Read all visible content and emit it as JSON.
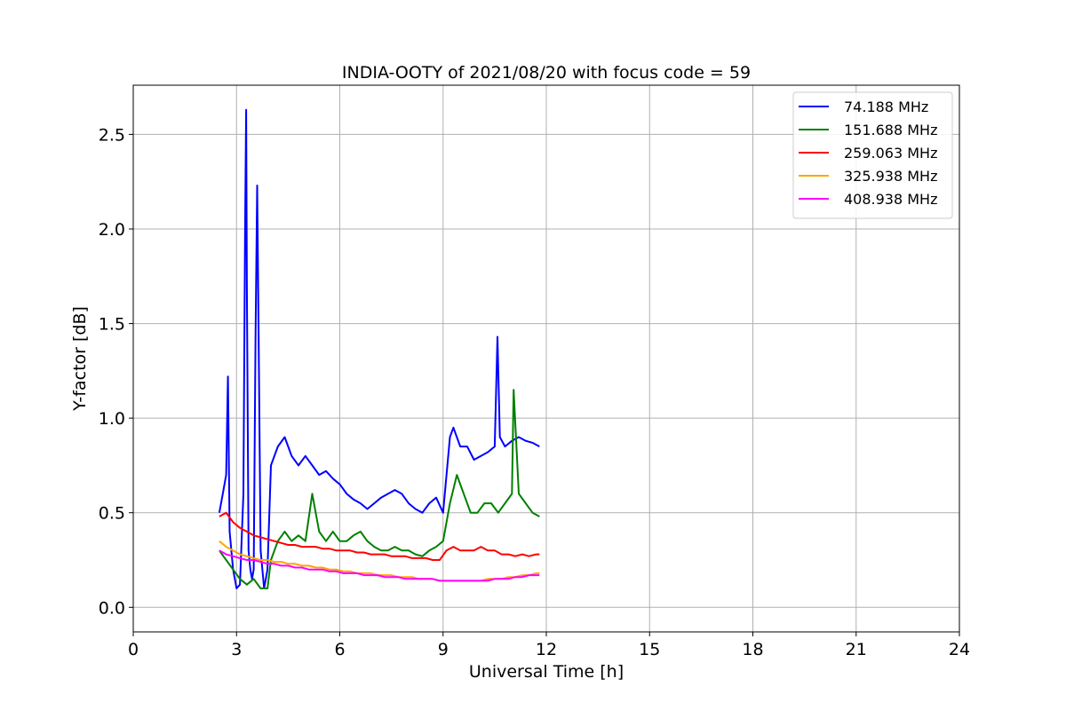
{
  "chart_data": {
    "type": "line",
    "title": "INDIA-OOTY of 2021/08/20 with focus code = 59",
    "xlabel": "Universal Time [h]",
    "ylabel": "Y-factor [dB]",
    "xlim": [
      0,
      24
    ],
    "ylim": [
      -0.13,
      2.76
    ],
    "xticks": [
      0,
      3,
      6,
      9,
      12,
      15,
      18,
      21,
      24
    ],
    "xtick_labels": [
      "0",
      "3",
      "6",
      "9",
      "12",
      "15",
      "18",
      "21",
      "24"
    ],
    "yticks": [
      0.0,
      0.5,
      1.0,
      1.5,
      2.0,
      2.5
    ],
    "ytick_labels": [
      "0.0",
      "0.5",
      "1.0",
      "1.5",
      "2.0",
      "2.5"
    ],
    "grid": true,
    "legend_position": "top-right",
    "series": [
      {
        "name": " 74.188 MHz",
        "color": "#0000ff",
        "x": [
          2.5,
          2.6,
          2.7,
          2.75,
          2.8,
          2.9,
          3.0,
          3.1,
          3.2,
          3.25,
          3.28,
          3.3,
          3.35,
          3.4,
          3.45,
          3.5,
          3.55,
          3.6,
          3.65,
          3.7,
          3.8,
          3.9,
          4.0,
          4.2,
          4.4,
          4.6,
          4.8,
          5.0,
          5.2,
          5.4,
          5.6,
          5.8,
          6.0,
          6.2,
          6.4,
          6.6,
          6.8,
          7.0,
          7.2,
          7.4,
          7.6,
          7.8,
          8.0,
          8.2,
          8.4,
          8.6,
          8.8,
          9.0,
          9.2,
          9.3,
          9.5,
          9.7,
          9.9,
          10.1,
          10.3,
          10.5,
          10.58,
          10.65,
          10.8,
          11.0,
          11.2,
          11.4,
          11.6,
          11.8
        ],
        "y": [
          0.5,
          0.6,
          0.7,
          1.22,
          0.4,
          0.2,
          0.1,
          0.12,
          0.6,
          2.0,
          2.63,
          1.7,
          0.3,
          0.2,
          0.15,
          0.2,
          1.4,
          2.23,
          1.3,
          0.3,
          0.1,
          0.2,
          0.75,
          0.85,
          0.9,
          0.8,
          0.75,
          0.8,
          0.75,
          0.7,
          0.72,
          0.68,
          0.65,
          0.6,
          0.57,
          0.55,
          0.52,
          0.55,
          0.58,
          0.6,
          0.62,
          0.6,
          0.55,
          0.52,
          0.5,
          0.55,
          0.58,
          0.5,
          0.9,
          0.95,
          0.85,
          0.85,
          0.78,
          0.8,
          0.82,
          0.85,
          1.43,
          0.9,
          0.85,
          0.88,
          0.9,
          0.88,
          0.87,
          0.85
        ]
      },
      {
        "name": "151.688 MHz",
        "color": "#008000",
        "x": [
          2.5,
          2.7,
          2.9,
          3.1,
          3.3,
          3.5,
          3.7,
          3.9,
          4.0,
          4.2,
          4.4,
          4.6,
          4.8,
          5.0,
          5.2,
          5.4,
          5.6,
          5.8,
          6.0,
          6.2,
          6.4,
          6.6,
          6.8,
          7.0,
          7.2,
          7.4,
          7.6,
          7.8,
          8.0,
          8.2,
          8.4,
          8.6,
          8.8,
          9.0,
          9.2,
          9.4,
          9.6,
          9.8,
          10.0,
          10.2,
          10.4,
          10.6,
          10.8,
          11.0,
          11.05,
          11.2,
          11.4,
          11.6,
          11.8
        ],
        "y": [
          0.3,
          0.25,
          0.2,
          0.15,
          0.12,
          0.15,
          0.1,
          0.1,
          0.25,
          0.35,
          0.4,
          0.35,
          0.38,
          0.35,
          0.6,
          0.4,
          0.35,
          0.4,
          0.35,
          0.35,
          0.38,
          0.4,
          0.35,
          0.32,
          0.3,
          0.3,
          0.32,
          0.3,
          0.3,
          0.28,
          0.27,
          0.3,
          0.32,
          0.35,
          0.55,
          0.7,
          0.6,
          0.5,
          0.5,
          0.55,
          0.55,
          0.5,
          0.55,
          0.6,
          1.15,
          0.6,
          0.55,
          0.5,
          0.48
        ]
      },
      {
        "name": "259.063 MHz",
        "color": "#ff0000",
        "x": [
          2.5,
          2.7,
          2.9,
          3.1,
          3.3,
          3.5,
          3.7,
          3.9,
          4.1,
          4.3,
          4.5,
          4.7,
          4.9,
          5.1,
          5.3,
          5.5,
          5.7,
          5.9,
          6.1,
          6.3,
          6.5,
          6.7,
          6.9,
          7.1,
          7.3,
          7.5,
          7.7,
          7.9,
          8.1,
          8.3,
          8.5,
          8.7,
          8.9,
          9.1,
          9.3,
          9.5,
          9.7,
          9.9,
          10.1,
          10.3,
          10.5,
          10.7,
          10.9,
          11.1,
          11.3,
          11.5,
          11.7,
          11.8
        ],
        "y": [
          0.48,
          0.5,
          0.45,
          0.42,
          0.4,
          0.38,
          0.37,
          0.36,
          0.35,
          0.34,
          0.33,
          0.33,
          0.32,
          0.32,
          0.32,
          0.31,
          0.31,
          0.3,
          0.3,
          0.3,
          0.29,
          0.29,
          0.28,
          0.28,
          0.28,
          0.27,
          0.27,
          0.27,
          0.26,
          0.26,
          0.26,
          0.25,
          0.25,
          0.3,
          0.32,
          0.3,
          0.3,
          0.3,
          0.32,
          0.3,
          0.3,
          0.28,
          0.28,
          0.27,
          0.28,
          0.27,
          0.28,
          0.28
        ]
      },
      {
        "name": "325.938 MHz",
        "color": "#ffa500",
        "x": [
          2.5,
          2.7,
          2.9,
          3.1,
          3.3,
          3.5,
          3.7,
          3.9,
          4.1,
          4.3,
          4.5,
          4.7,
          4.9,
          5.1,
          5.3,
          5.5,
          5.7,
          5.9,
          6.1,
          6.3,
          6.5,
          6.7,
          6.9,
          7.1,
          7.3,
          7.5,
          7.7,
          7.9,
          8.1,
          8.3,
          8.5,
          8.7,
          8.9,
          9.1,
          9.3,
          9.5,
          9.7,
          9.9,
          10.1,
          10.3,
          10.5,
          10.7,
          10.9,
          11.1,
          11.3,
          11.5,
          11.7,
          11.8
        ],
        "y": [
          0.35,
          0.32,
          0.3,
          0.28,
          0.27,
          0.26,
          0.25,
          0.25,
          0.24,
          0.24,
          0.23,
          0.23,
          0.22,
          0.22,
          0.21,
          0.21,
          0.2,
          0.2,
          0.19,
          0.19,
          0.18,
          0.18,
          0.18,
          0.17,
          0.17,
          0.17,
          0.16,
          0.16,
          0.16,
          0.15,
          0.15,
          0.15,
          0.14,
          0.14,
          0.14,
          0.14,
          0.14,
          0.14,
          0.14,
          0.15,
          0.15,
          0.15,
          0.16,
          0.16,
          0.17,
          0.17,
          0.18,
          0.18
        ]
      },
      {
        "name": "408.938 MHz",
        "color": "#ff00ff",
        "x": [
          2.5,
          2.7,
          2.9,
          3.1,
          3.3,
          3.5,
          3.7,
          3.9,
          4.1,
          4.3,
          4.5,
          4.7,
          4.9,
          5.1,
          5.3,
          5.5,
          5.7,
          5.9,
          6.1,
          6.3,
          6.5,
          6.7,
          6.9,
          7.1,
          7.3,
          7.5,
          7.7,
          7.9,
          8.1,
          8.3,
          8.5,
          8.7,
          8.9,
          9.1,
          9.3,
          9.5,
          9.7,
          9.9,
          10.1,
          10.3,
          10.5,
          10.7,
          10.9,
          11.1,
          11.3,
          11.5,
          11.7,
          11.8
        ],
        "y": [
          0.3,
          0.28,
          0.27,
          0.26,
          0.25,
          0.25,
          0.24,
          0.23,
          0.23,
          0.22,
          0.22,
          0.21,
          0.21,
          0.2,
          0.2,
          0.2,
          0.19,
          0.19,
          0.18,
          0.18,
          0.18,
          0.17,
          0.17,
          0.17,
          0.16,
          0.16,
          0.16,
          0.15,
          0.15,
          0.15,
          0.15,
          0.15,
          0.14,
          0.14,
          0.14,
          0.14,
          0.14,
          0.14,
          0.14,
          0.14,
          0.15,
          0.15,
          0.15,
          0.16,
          0.16,
          0.17,
          0.17,
          0.17
        ]
      }
    ]
  }
}
